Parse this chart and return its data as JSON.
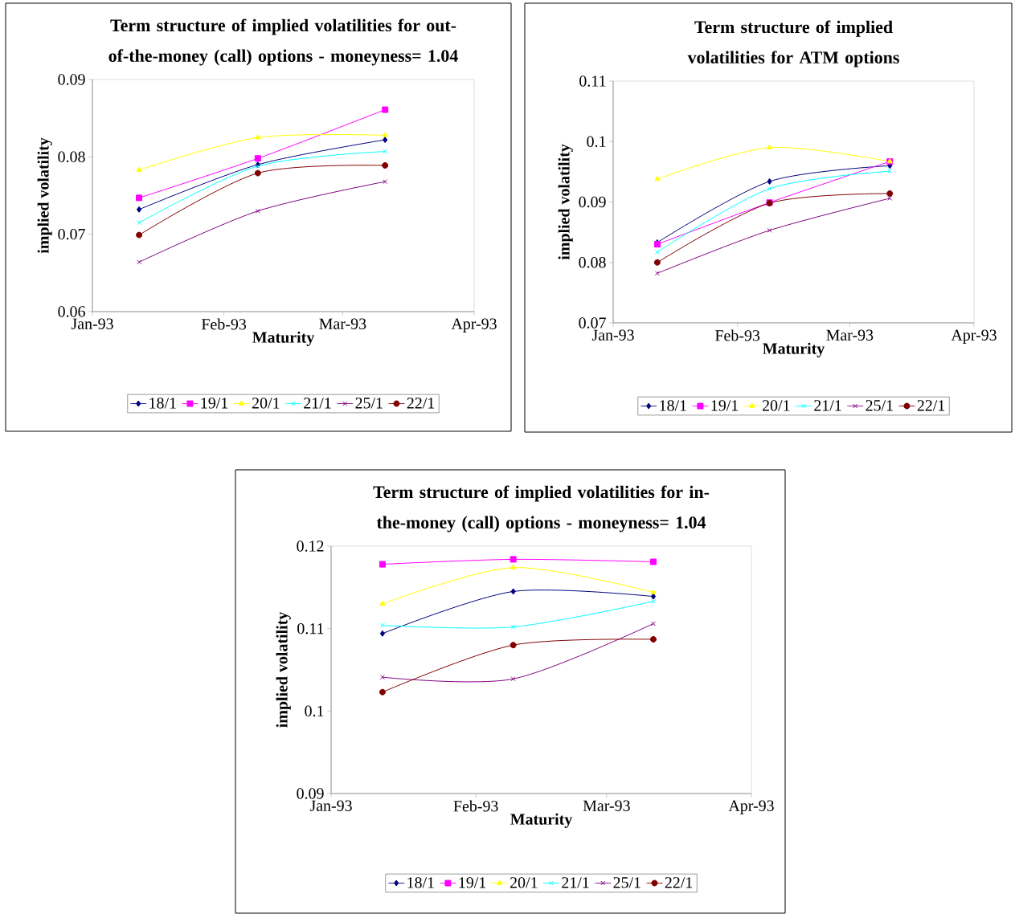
{
  "chart_data": [
    {
      "type": "line",
      "title": "Term structure of implied volatilities for out-of-the-money (call) options - moneyness= 1.04",
      "xlabel": "Maturity",
      "ylabel": "implied volatility",
      "legend": "bottom",
      "x": [
        "1993-01-12",
        "1993-02-09",
        "1993-03-11"
      ],
      "xlim": [
        "1993-01-01",
        "1993-04-01"
      ],
      "xticks": [
        {
          "value": "1993-01-01",
          "label": "Jan-93"
        },
        {
          "value": "1993-02-01",
          "label": "Feb-93"
        },
        {
          "value": "1993-03-01",
          "label": "Mar-93"
        },
        {
          "value": "1993-04-01",
          "label": "Apr-93"
        }
      ],
      "ylim": [
        0.06,
        0.09
      ],
      "yticks": [
        0.06,
        0.07,
        0.08,
        0.09
      ],
      "series": [
        {
          "name": "18/1",
          "color": "#000080",
          "marker": "diamond",
          "values": [
            0.0732,
            0.079,
            0.0822
          ]
        },
        {
          "name": "19/1",
          "color": "#ff00ff",
          "marker": "square",
          "values": [
            0.0747,
            0.0798,
            0.0861
          ]
        },
        {
          "name": "20/1",
          "color": "#ffff00",
          "marker": "triangle",
          "values": [
            0.0783,
            0.0825,
            0.0828
          ]
        },
        {
          "name": "21/1",
          "color": "#00ffff",
          "marker": "cross",
          "values": [
            0.0715,
            0.0788,
            0.0807
          ]
        },
        {
          "name": "25/1",
          "color": "#800080",
          "marker": "cross",
          "values": [
            0.0664,
            0.073,
            0.0768
          ]
        },
        {
          "name": "22/1",
          "color": "#800000",
          "marker": "circle",
          "values": [
            0.0699,
            0.0779,
            0.0789
          ]
        }
      ]
    },
    {
      "type": "line",
      "title": "Term structure of implied volatilities for ATM options",
      "xlabel": "Maturity",
      "ylabel": "implied volatility",
      "legend": "bottom",
      "x": [
        "1993-01-12",
        "1993-02-09",
        "1993-03-11"
      ],
      "xlim": [
        "1993-01-01",
        "1993-04-01"
      ],
      "xticks": [
        {
          "value": "1993-01-01",
          "label": "Jan-93"
        },
        {
          "value": "1993-02-01",
          "label": "Feb-93"
        },
        {
          "value": "1993-03-01",
          "label": "Mar-93"
        },
        {
          "value": "1993-04-01",
          "label": "Apr-93"
        }
      ],
      "ylim": [
        0.07,
        0.11
      ],
      "yticks": [
        0.07,
        0.08,
        0.09,
        0.1,
        0.11
      ],
      "series": [
        {
          "name": "18/1",
          "color": "#000080",
          "marker": "diamond",
          "values": [
            0.0833,
            0.0934,
            0.096
          ]
        },
        {
          "name": "19/1",
          "color": "#ff00ff",
          "marker": "square",
          "values": [
            0.083,
            0.0899,
            0.0967
          ]
        },
        {
          "name": "20/1",
          "color": "#ffff00",
          "marker": "triangle",
          "values": [
            0.0938,
            0.099,
            0.0967
          ]
        },
        {
          "name": "21/1",
          "color": "#00ffff",
          "marker": "cross",
          "values": [
            0.0817,
            0.0922,
            0.0951
          ]
        },
        {
          "name": "25/1",
          "color": "#800080",
          "marker": "cross",
          "values": [
            0.0782,
            0.0853,
            0.0906
          ]
        },
        {
          "name": "22/1",
          "color": "#800000",
          "marker": "circle",
          "values": [
            0.08,
            0.0898,
            0.0914
          ]
        }
      ]
    },
    {
      "type": "line",
      "title": "Term structure of implied volatilities for in-the-money (call) options - moneyness= 1.04",
      "xlabel": "Maturity",
      "ylabel": "implied volatility",
      "legend": "bottom",
      "x": [
        "1993-01-12",
        "1993-02-09",
        "1993-03-11"
      ],
      "xlim": [
        "1993-01-01",
        "1993-04-01"
      ],
      "xticks": [
        {
          "value": "1993-01-01",
          "label": "Jan-93"
        },
        {
          "value": "1993-02-01",
          "label": "Feb-93"
        },
        {
          "value": "1993-03-01",
          "label": "Mar-93"
        },
        {
          "value": "1993-04-01",
          "label": "Apr-93"
        }
      ],
      "ylim": [
        0.09,
        0.12
      ],
      "yticks": [
        0.09,
        0.1,
        0.11,
        0.12
      ],
      "series": [
        {
          "name": "18/1",
          "color": "#000080",
          "marker": "diamond",
          "values": [
            0.1094,
            0.1145,
            0.1139
          ]
        },
        {
          "name": "19/1",
          "color": "#ff00ff",
          "marker": "square",
          "values": [
            0.1178,
            0.1184,
            0.1181
          ]
        },
        {
          "name": "20/1",
          "color": "#ffff00",
          "marker": "triangle",
          "values": [
            0.113,
            0.1174,
            0.1144
          ]
        },
        {
          "name": "21/1",
          "color": "#00ffff",
          "marker": "cross",
          "values": [
            0.1104,
            0.1102,
            0.1133
          ]
        },
        {
          "name": "25/1",
          "color": "#800080",
          "marker": "cross",
          "values": [
            0.1041,
            0.1039,
            0.1106
          ]
        },
        {
          "name": "22/1",
          "color": "#800000",
          "marker": "circle",
          "values": [
            0.1023,
            0.108,
            0.1087
          ]
        }
      ]
    }
  ]
}
